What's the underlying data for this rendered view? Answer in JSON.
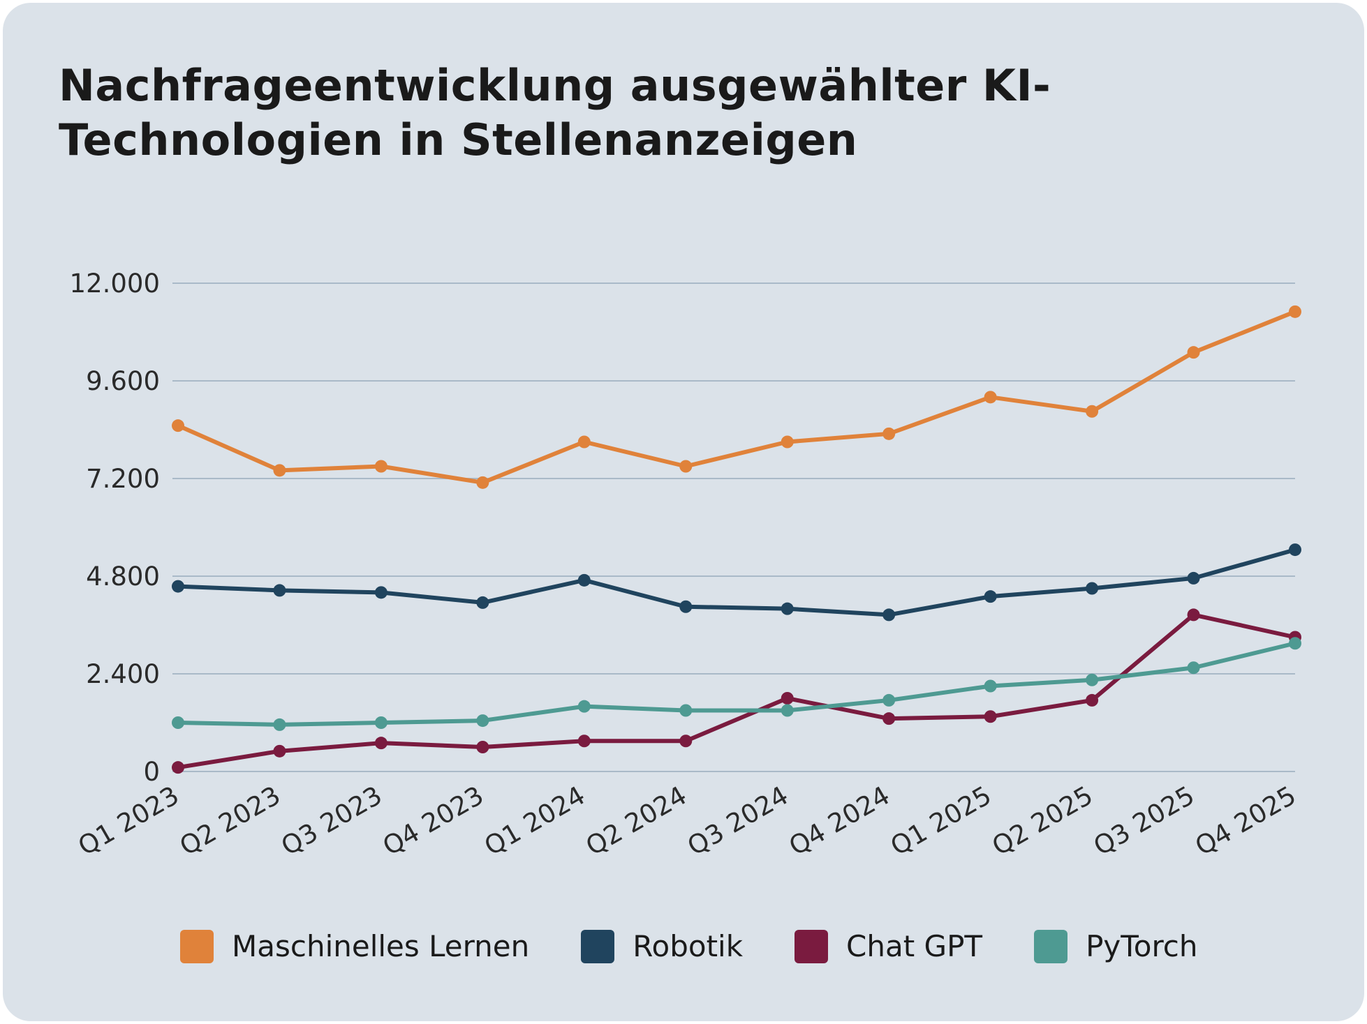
{
  "chart_data": {
    "type": "line",
    "title": "Nachfrageentwicklung ausgewählter KI-Technologien in Stellenanzeigen",
    "xlabel": "",
    "ylabel": "",
    "categories": [
      "Q1 2023",
      "Q2 2023",
      "Q3 2023",
      "Q4 2023",
      "Q1 2024",
      "Q2 2024",
      "Q3 2024",
      "Q4 2024",
      "Q1 2025",
      "Q2 2025",
      "Q3 2025",
      "Q4 2025"
    ],
    "ylim": [
      0,
      12000
    ],
    "yticks": [
      0,
      2400,
      4800,
      7200,
      9600,
      12000
    ],
    "ytick_labels": [
      "0",
      "2.400",
      "4.800",
      "7.200",
      "9.600",
      "12.000"
    ],
    "grid": true,
    "legend_placement": "bottom",
    "series": [
      {
        "name": "Maschinelles Lernen",
        "color": "#e0823a",
        "values": [
          8500,
          7400,
          7500,
          7100,
          8100,
          7500,
          8100,
          8300,
          9200,
          8850,
          10300,
          11300
        ]
      },
      {
        "name": "Robotik",
        "color": "#20445e",
        "values": [
          4550,
          4450,
          4400,
          4150,
          4700,
          4050,
          4000,
          3850,
          4300,
          4500,
          4750,
          5450
        ]
      },
      {
        "name": "Chat GPT",
        "color": "#7a1b3f",
        "values": [
          100,
          500,
          700,
          600,
          750,
          750,
          1800,
          1300,
          1350,
          1750,
          3850,
          3300
        ]
      },
      {
        "name": "PyTorch",
        "color": "#4e9a92",
        "values": [
          1200,
          1150,
          1200,
          1250,
          1600,
          1500,
          1500,
          1750,
          2100,
          2250,
          2550,
          3150
        ]
      }
    ]
  }
}
